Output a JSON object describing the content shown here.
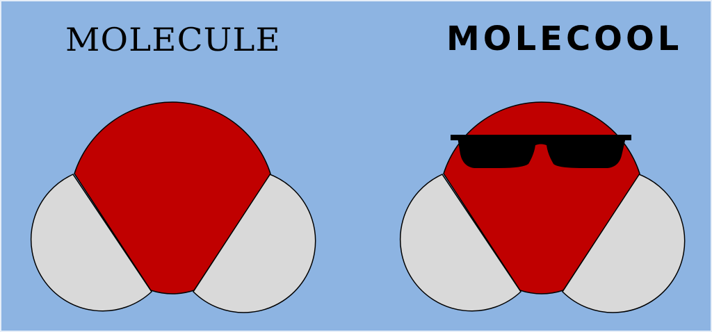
{
  "titles": {
    "left": "MOLECULE",
    "right": "MOLECOOL"
  },
  "colors": {
    "background": "#8db4e2",
    "oxygen": "#c00000",
    "hydrogen": "#d9d9d9",
    "outline": "#000000",
    "sunglasses": "#000000"
  },
  "icons": {
    "left_molecule": "water-molecule-icon",
    "right_molecule": "water-molecule-with-sunglasses-icon"
  }
}
